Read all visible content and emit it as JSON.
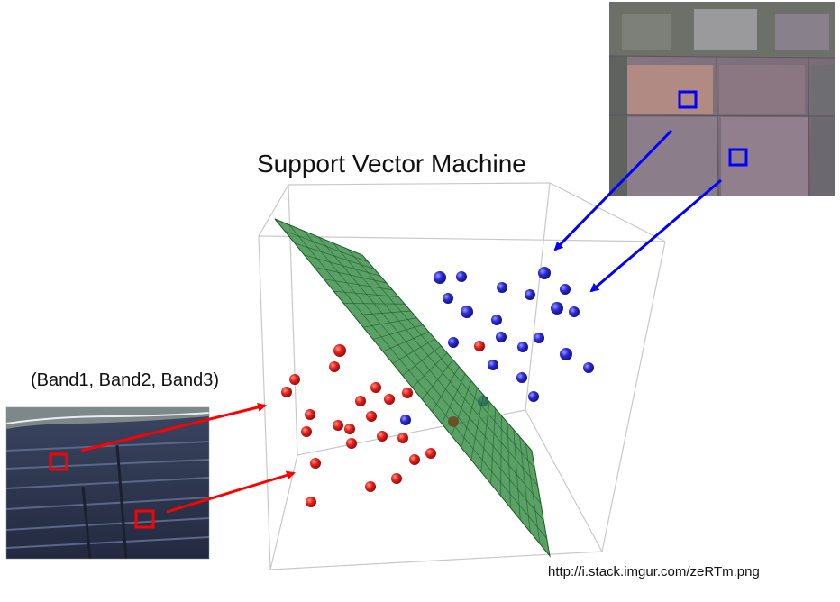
{
  "title": "Support Vector Machine",
  "band_label": "(Band1, Band2, Band3)",
  "source_url": "http://i.stack.imgur.com/zeRTm.png",
  "colors": {
    "class_red": "#e8201c",
    "class_blue": "#2b2bd6",
    "hyperplane": "#2f8a3e",
    "arrow_red": "#ff0000",
    "arrow_blue": "#0000ff",
    "cube_edge": "#c8c8c8"
  },
  "images": {
    "solar_panel_photo": "aerial-solar-panel-rows",
    "farmland_photo": "aerial-farmland-fields"
  }
}
